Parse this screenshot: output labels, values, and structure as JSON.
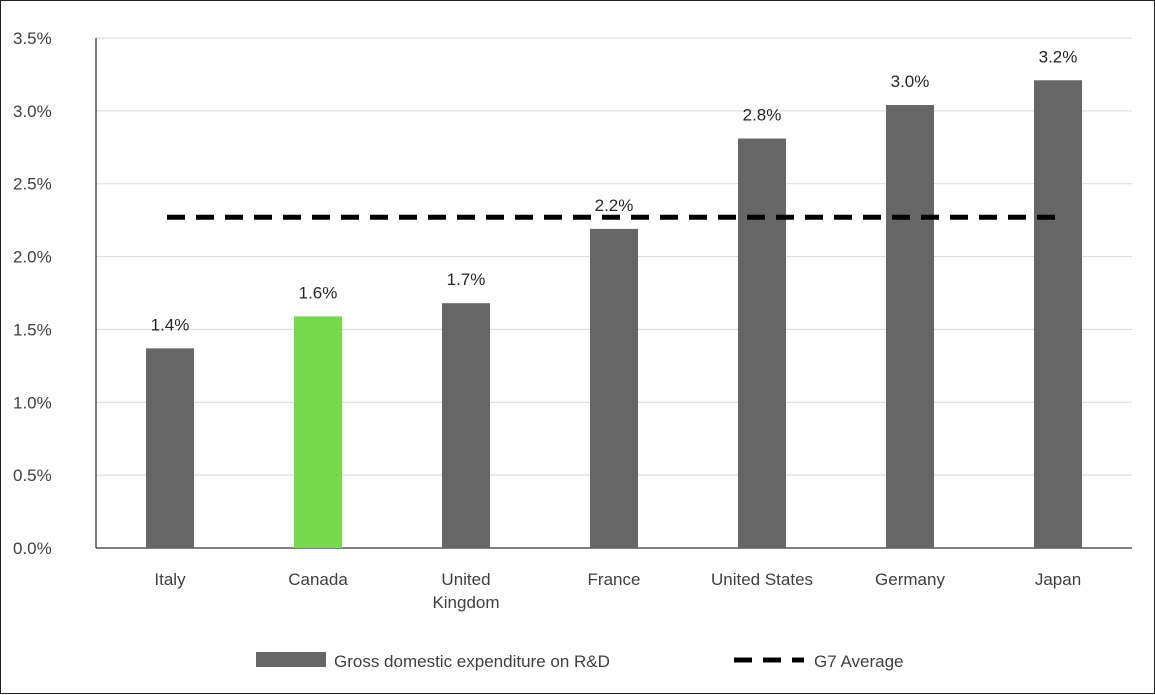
{
  "chart_data": {
    "type": "bar",
    "categories": [
      "Italy",
      "Canada",
      "United Kingdom",
      "France",
      "United States",
      "Germany",
      "Japan"
    ],
    "category_lines": [
      [
        "Italy"
      ],
      [
        "Canada"
      ],
      [
        "United",
        "Kingdom"
      ],
      [
        "France"
      ],
      [
        "United States"
      ],
      [
        "Germany"
      ],
      [
        "Japan"
      ]
    ],
    "series": [
      {
        "name": "Gross domestic expenditure on R&D",
        "type": "bar",
        "values": [
          1.37,
          1.59,
          1.68,
          2.19,
          2.81,
          3.04,
          3.21
        ],
        "labels": [
          "1.4%",
          "1.6%",
          "1.7%",
          "2.2%",
          "2.8%",
          "3.0%",
          "3.2%"
        ],
        "color": "#666666",
        "highlight": {
          "category": "Canada",
          "color": "#77D94B"
        }
      },
      {
        "name": "G7 Average",
        "type": "line",
        "style": "dashed",
        "value": 2.27,
        "color": "#000000"
      }
    ],
    "y_ticks": [
      "0.0%",
      "0.5%",
      "1.0%",
      "1.5%",
      "2.0%",
      "2.5%",
      "3.0%",
      "3.5%"
    ],
    "ylim": [
      0,
      3.5
    ],
    "grid": true,
    "legend_position": "bottom",
    "title": "",
    "xlabel": "",
    "ylabel": ""
  }
}
